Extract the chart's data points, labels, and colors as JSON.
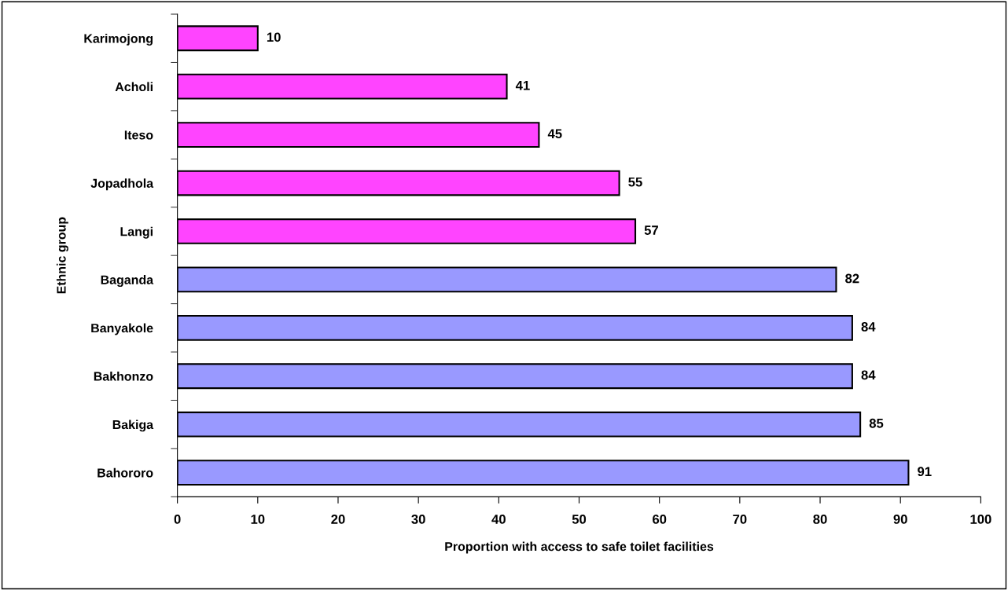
{
  "chart_data": {
    "type": "bar",
    "orientation": "horizontal",
    "xlabel": "Proportion with access to safe toilet facilities",
    "ylabel": "Ethnic group",
    "categories": [
      "Karimojong",
      "Acholi",
      "Iteso",
      "Jopadhola",
      "Langi",
      "Baganda",
      "Banyakole",
      "Bakhonzo",
      "Bakiga",
      "Bahororo"
    ],
    "values": [
      10,
      41,
      45,
      55,
      57,
      82,
      84,
      84,
      85,
      91
    ],
    "colors": [
      "#ff44ff",
      "#ff44ff",
      "#ff44ff",
      "#ff44ff",
      "#ff44ff",
      "#9999ff",
      "#9999ff",
      "#9999ff",
      "#9999ff",
      "#9999ff"
    ],
    "xlim": [
      0,
      100
    ],
    "xticks": [
      0,
      10,
      20,
      30,
      40,
      50,
      60,
      70,
      80,
      90,
      100
    ],
    "data_labels": true,
    "grid": false,
    "legend": false
  }
}
